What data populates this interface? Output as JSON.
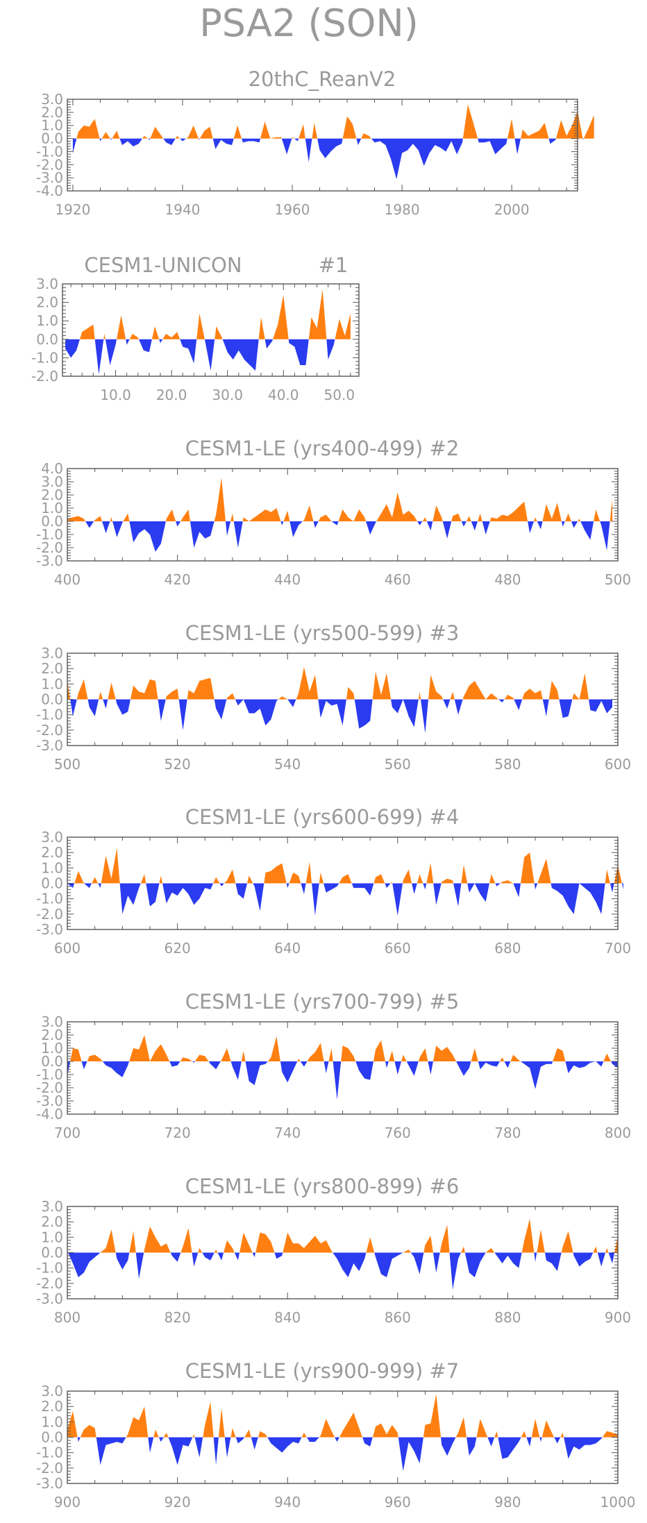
{
  "title": "PSA2 (SON)",
  "colors": {
    "positive": "#ff8011",
    "negative": "#2a3bf0",
    "text": "#9a9a9a",
    "axis": "#555555"
  },
  "chart_data": [
    {
      "type": "area",
      "title": "20thC_ReanV2",
      "member_label": "",
      "ylim": [
        -4.0,
        3.0
      ],
      "yticks": [
        "-4.0",
        "-3.0",
        "-2.0",
        "-1.0",
        "0.0",
        "1.0",
        "2.0",
        "3.0"
      ],
      "xlim": [
        1919,
        2012
      ],
      "xticks": [
        1920,
        1940,
        1960,
        1980,
        2000
      ],
      "xtick_labels": [
        "1920",
        "1940",
        "1960",
        "1980",
        "2000"
      ],
      "x_start": 1920,
      "values": [
        -1.1,
        0.5,
        1.0,
        0.9,
        1.5,
        -0.2,
        0.5,
        -0.1,
        0.6,
        -0.5,
        -0.2,
        -0.6,
        -0.4,
        0.2,
        -0.1,
        0.9,
        0.3,
        -0.3,
        -0.5,
        0.2,
        -0.2,
        0.1,
        1.0,
        -0.1,
        0.6,
        0.9,
        -0.8,
        -0.1,
        -0.4,
        -0.5,
        1.0,
        -0.3,
        -0.2,
        -0.2,
        -0.3,
        1.3,
        0.0,
        0.1,
        0.1,
        -1.2,
        0.1,
        -0.2,
        1.1,
        -1.8,
        1.2,
        -0.9,
        -1.5,
        -1.0,
        -0.6,
        -0.4,
        1.7,
        1.1,
        -0.5,
        0.4,
        0.2,
        -0.3,
        -0.2,
        -0.5,
        -1.6,
        -3.1,
        -1.1,
        -0.9,
        -0.4,
        -0.9,
        -2.1,
        -1.1,
        -0.5,
        -0.7,
        -1.0,
        -0.2,
        -1.2,
        -0.3,
        2.6,
        1.2,
        -0.3,
        -0.3,
        -0.2,
        -1.2,
        -0.8,
        -0.4,
        1.5,
        -1.2,
        0.7,
        0.2,
        0.4,
        0.6,
        1.2,
        -0.4,
        -0.1,
        1.4,
        0.2,
        1.0,
        2.1,
        -0.1,
        0.8,
        1.8
      ]
    },
    {
      "type": "area",
      "title": "CESM1-UNICON",
      "member_label": "#1",
      "ylim": [
        -2.0,
        3.0
      ],
      "yticks": [
        "-2.0",
        "-1.0",
        "0.0",
        "1.0",
        "2.0",
        "3.0"
      ],
      "xlim": [
        0.5,
        53.5
      ],
      "xticks": [
        10,
        20,
        30,
        40,
        50
      ],
      "xtick_labels": [
        "10.0",
        "20.0",
        "30.0",
        "40.0",
        "50.0"
      ],
      "x_start": 1,
      "values": [
        -0.5,
        -1.0,
        -0.6,
        0.4,
        0.6,
        0.8,
        -1.9,
        0.3,
        -1.4,
        -0.3,
        1.3,
        -0.3,
        0.3,
        0.1,
        -0.6,
        -0.7,
        0.7,
        -0.2,
        0.3,
        0.1,
        0.4,
        -0.4,
        -0.5,
        -1.3,
        1.4,
        -0.1,
        -1.7,
        0.7,
        0.1,
        -0.7,
        -1.1,
        -0.6,
        -1.1,
        -1.4,
        -1.7,
        1.2,
        -0.5,
        -0.1,
        0.8,
        2.4,
        -0.2,
        -0.4,
        -1.4,
        -1.4,
        1.2,
        0.6,
        2.7,
        -1.1,
        -0.3,
        1.1,
        0.2,
        1.4
      ]
    },
    {
      "type": "area",
      "title": "CESM1-LE (yrs400-499)",
      "member_label": "#2",
      "ylim": [
        -3.0,
        4.0
      ],
      "yticks": [
        "-3.0",
        "-2.0",
        "-1.0",
        "0.0",
        "1.0",
        "2.0",
        "3.0",
        "4.0"
      ],
      "xlim": [
        400,
        500
      ],
      "xticks": [
        400,
        420,
        440,
        460,
        480,
        500
      ],
      "xtick_labels": [
        "400",
        "420",
        "440",
        "460",
        "480",
        "500"
      ],
      "x_start": 400,
      "values": [
        0.2,
        0.3,
        0.4,
        0.2,
        -0.5,
        0.1,
        0.4,
        -0.9,
        0.3,
        -1.2,
        -0.1,
        0.6,
        -1.6,
        -0.9,
        -0.6,
        -1.0,
        -2.3,
        -1.7,
        0.2,
        0.9,
        -0.4,
        0.3,
        0.9,
        -2.0,
        -0.8,
        -1.3,
        -1.1,
        0.5,
        3.3,
        -1.1,
        0.6,
        -2.0,
        0.3,
        0.0,
        0.3,
        0.6,
        0.9,
        0.7,
        1.0,
        -0.3,
        0.8,
        -1.2,
        -0.3,
        0.1,
        1.2,
        -0.5,
        0.3,
        0.5,
        0.0,
        -0.3,
        0.9,
        0.3,
        0.0,
        0.9,
        0.3,
        -1.0,
        -0.1,
        0.6,
        1.3,
        0.3,
        2.2,
        0.5,
        0.8,
        0.4,
        -0.3,
        0.3,
        -0.7,
        1.2,
        0.3,
        -1.3,
        0.4,
        0.6,
        -0.4,
        0.4,
        -0.7,
        0.6,
        -1.0,
        0.3,
        0.2,
        0.5,
        0.4,
        0.7,
        1.1,
        1.5,
        -0.9,
        0.3,
        -0.6,
        1.3,
        0.2,
        1.4,
        -0.4,
        0.6,
        -0.5,
        0.2,
        -0.7,
        -1.4,
        0.9,
        -0.3,
        -2.2,
        1.7
      ]
    },
    {
      "type": "area",
      "title": "CESM1-LE (yrs500-599)",
      "member_label": "#3",
      "ylim": [
        -3.0,
        3.0
      ],
      "yticks": [
        "-3.0",
        "-2.0",
        "-1.0",
        "0.0",
        "1.0",
        "2.0",
        "3.0"
      ],
      "xlim": [
        500,
        600
      ],
      "xticks": [
        500,
        520,
        540,
        560,
        580,
        600
      ],
      "xtick_labels": [
        "500",
        "520",
        "540",
        "560",
        "580",
        "600"
      ],
      "x_start": 500,
      "values": [
        1.2,
        -1.1,
        0.4,
        1.3,
        -0.5,
        -1.1,
        0.5,
        -0.6,
        1.1,
        -0.3,
        -1.0,
        -0.8,
        0.9,
        0.5,
        0.4,
        1.3,
        1.2,
        -1.4,
        0.2,
        0.5,
        0.7,
        -2.0,
        0.6,
        0.4,
        1.2,
        1.3,
        1.4,
        -0.6,
        -1.3,
        0.1,
        0.4,
        -0.4,
        0.0,
        -0.9,
        -0.9,
        -0.6,
        -1.7,
        -1.3,
        -0.1,
        0.2,
        0.0,
        -0.5,
        0.4,
        2.1,
        0.5,
        1.6,
        -1.2,
        -0.1,
        -0.4,
        -0.3,
        -1.7,
        0.8,
        0.4,
        -1.9,
        -1.7,
        -1.4,
        1.8,
        0.3,
        1.7,
        -0.5,
        -0.9,
        0.0,
        -1.1,
        -1.8,
        0.5,
        -2.2,
        1.6,
        0.5,
        0.2,
        -0.6,
        0.5,
        -1.0,
        0.2,
        0.9,
        1.2,
        0.6,
        0.0,
        0.4,
        0.1,
        -0.2,
        0.3,
        0.1,
        -0.7,
        0.4,
        0.7,
        0.4,
        0.6,
        -1.1,
        1.2,
        0.6,
        -1.2,
        -1.1,
        0.4,
        0.0,
        1.7,
        -0.7,
        -0.8,
        -0.1,
        -0.9,
        -0.5
      ]
    },
    {
      "type": "area",
      "title": "CESM1-LE (yrs600-699)",
      "member_label": "#4",
      "ylim": [
        -3.0,
        3.0
      ],
      "yticks": [
        "-3.0",
        "-2.0",
        "-1.0",
        "0.0",
        "1.0",
        "2.0",
        "3.0"
      ],
      "xlim": [
        600,
        700
      ],
      "xticks": [
        600,
        620,
        640,
        660,
        680,
        700
      ],
      "xtick_labels": [
        "600",
        "620",
        "640",
        "660",
        "680",
        "700"
      ],
      "x_start": 600,
      "values": [
        0.0,
        -0.3,
        0.8,
        0.0,
        -0.3,
        0.4,
        -0.3,
        1.8,
        0.3,
        2.3,
        -2.0,
        -0.8,
        -1.4,
        -0.3,
        0.6,
        -1.5,
        -1.2,
        0.5,
        -1.3,
        -0.6,
        -0.8,
        -0.3,
        -0.7,
        -1.4,
        -1.0,
        -0.3,
        -0.4,
        0.4,
        -0.2,
        0.2,
        0.9,
        -0.7,
        -1.0,
        0.5,
        -0.2,
        -1.8,
        0.7,
        0.8,
        1.1,
        1.3,
        -0.3,
        0.7,
        0.5,
        -0.7,
        1.4,
        -2.1,
        0.7,
        -0.6,
        -0.4,
        -0.2,
        0.4,
        0.6,
        -0.3,
        -0.3,
        -0.3,
        -0.8,
        0.4,
        0.6,
        -0.3,
        0.1,
        -2.1,
        0.2,
        0.9,
        -0.7,
        0.6,
        -0.4,
        1.3,
        -1.4,
        0.1,
        0.3,
        0.2,
        -1.5,
        1.2,
        -0.6,
        0.0,
        -0.7,
        -1.2,
        0.6,
        -0.2,
        0.1,
        0.2,
        0.0,
        -0.9,
        1.7,
        2.0,
        -0.4,
        0.6,
        1.6,
        -0.3,
        -0.5,
        -0.8,
        -1.5,
        -2.0,
        0.0,
        -0.3,
        -0.6,
        -1.2,
        -2.0,
        0.9,
        -0.6,
        1.2,
        -0.4
      ]
    },
    {
      "type": "area",
      "title": "CESM1-LE (yrs700-799)",
      "member_label": "#5",
      "ylim": [
        -4.0,
        3.0
      ],
      "yticks": [
        "-4.0",
        "-3.0",
        "-2.0",
        "-1.0",
        "0.0",
        "1.0",
        "2.0",
        "3.0"
      ],
      "xlim": [
        700,
        800
      ],
      "xticks": [
        700,
        720,
        740,
        760,
        780,
        800
      ],
      "xtick_labels": [
        "700",
        "720",
        "740",
        "760",
        "780",
        "800"
      ],
      "x_start": 700,
      "values": [
        -1.1,
        1.0,
        0.9,
        -0.6,
        0.4,
        0.5,
        0.2,
        -0.3,
        -0.5,
        -0.9,
        -1.2,
        -0.3,
        1.0,
        0.9,
        2.0,
        0.0,
        0.8,
        1.3,
        0.5,
        -0.4,
        -0.3,
        0.3,
        0.2,
        -0.1,
        0.5,
        0.4,
        -0.2,
        -0.6,
        0.1,
        1.0,
        -0.4,
        -1.4,
        0.8,
        -1.5,
        -1.8,
        -0.3,
        -0.2,
        0.3,
        1.9,
        -0.8,
        -1.6,
        -0.7,
        0.2,
        -0.4,
        0.3,
        0.7,
        1.4,
        -0.9,
        1.0,
        -2.9,
        1.2,
        1.0,
        0.4,
        -0.7,
        -1.3,
        -1.4,
        0.9,
        1.6,
        -0.5,
        0.8,
        -1.0,
        0.5,
        -0.3,
        -1.1,
        0.3,
        1.0,
        -1.0,
        1.2,
        0.8,
        1.1,
        0.5,
        -0.3,
        -1.1,
        -0.5,
        1.0,
        -0.6,
        -0.1,
        -0.3,
        -0.4,
        0.3,
        -0.5,
        0.5,
        0.1,
        -0.2,
        -0.5,
        -2.1,
        -0.4,
        -0.2,
        -0.2,
        1.0,
        0.8,
        -0.9,
        -0.3,
        -0.5,
        -0.4,
        -0.1,
        0.0,
        -0.4,
        0.6,
        -0.2,
        -0.5
      ]
    },
    {
      "type": "area",
      "title": "CESM1-LE (yrs800-899)",
      "member_label": "#6",
      "ylim": [
        -3.0,
        3.0
      ],
      "yticks": [
        "-3.0",
        "-2.0",
        "-1.0",
        "0.0",
        "1.0",
        "2.0",
        "3.0"
      ],
      "xlim": [
        800,
        900
      ],
      "xticks": [
        800,
        820,
        840,
        860,
        880,
        900
      ],
      "xtick_labels": [
        "800",
        "820",
        "840",
        "860",
        "880",
        "900"
      ],
      "x_start": 800,
      "values": [
        0.1,
        -0.7,
        -1.6,
        -1.3,
        -0.6,
        -0.3,
        0.0,
        0.3,
        1.5,
        -0.4,
        -1.1,
        -0.5,
        1.4,
        -1.7,
        0.2,
        1.7,
        1.0,
        0.4,
        0.6,
        -0.2,
        -0.6,
        0.4,
        1.6,
        -0.9,
        0.3,
        -0.3,
        -0.5,
        0.2,
        -0.5,
        0.8,
        0.3,
        -0.5,
        1.3,
        0.5,
        -0.3,
        1.3,
        1.2,
        0.7,
        -0.4,
        -0.2,
        1.3,
        0.6,
        0.6,
        0.3,
        0.7,
        1.1,
        0.6,
        0.8,
        0.1,
        -0.4,
        -1.1,
        -1.6,
        -0.7,
        -1.2,
        -0.4,
        1.0,
        -0.3,
        -1.4,
        -1.6,
        -0.4,
        -0.2,
        0.0,
        0.2,
        -0.3,
        -1.4,
        0.5,
        1.1,
        -1.3,
        0.6,
        1.8,
        -2.4,
        -0.4,
        0.4,
        -1.3,
        -1.6,
        -0.6,
        0.0,
        0.3,
        -0.2,
        -0.7,
        -0.2,
        -0.7,
        -1.0,
        0.8,
        2.2,
        -0.6,
        1.5,
        -0.5,
        -0.7,
        -1.2,
        0.4,
        1.4,
        -0.2,
        -0.9,
        -0.6,
        -0.4,
        0.4,
        -0.9,
        0.3,
        -0.7,
        1.1
      ]
    },
    {
      "type": "area",
      "title": "CESM1-LE (yrs900-999)",
      "member_label": "#7",
      "ylim": [
        -3.0,
        3.0
      ],
      "yticks": [
        "-3.0",
        "-2.0",
        "-1.0",
        "0.0",
        "1.0",
        "2.0",
        "3.0"
      ],
      "xlim": [
        900,
        1000
      ],
      "xticks": [
        900,
        920,
        940,
        960,
        980,
        1000
      ],
      "xtick_labels": [
        "900",
        "920",
        "940",
        "960",
        "980",
        "1000"
      ],
      "x_start": 900,
      "values": [
        0.5,
        1.7,
        -0.3,
        0.5,
        0.8,
        0.6,
        -1.8,
        -0.5,
        -0.4,
        -0.3,
        -0.4,
        0.2,
        1.3,
        1.1,
        2.0,
        -1.0,
        0.5,
        -0.3,
        0.3,
        -0.6,
        -1.8,
        -0.5,
        -0.6,
        0.2,
        -1.3,
        0.8,
        2.3,
        -1.8,
        1.9,
        -1.3,
        0.6,
        -0.4,
        -0.1,
        0.5,
        -0.8,
        0.4,
        0.2,
        -0.4,
        -0.7,
        -1.0,
        -0.6,
        -0.3,
        -0.4,
        0.3,
        -0.3,
        -0.3,
        0.1,
        1.2,
        0.4,
        -0.3,
        0.4,
        1.0,
        1.6,
        0.6,
        -0.4,
        -0.6,
        0.7,
        0.9,
        0.2,
        0.8,
        0.3,
        -2.2,
        -0.3,
        -0.9,
        -1.7,
        0.8,
        0.9,
        2.8,
        -0.5,
        -1.2,
        -0.4,
        0.3,
        1.3,
        -1.2,
        -0.6,
        1.2,
        0.3,
        -0.6,
        0.4,
        -1.4,
        -1.3,
        -0.8,
        -0.3,
        0.4,
        -0.6,
        1.2,
        -0.3,
        1.1,
        0.3,
        -0.4,
        0.3,
        -1.4,
        -0.6,
        -0.8,
        -0.5,
        -0.5,
        -0.4,
        -0.1,
        0.4,
        0.3,
        0.2
      ]
    }
  ]
}
